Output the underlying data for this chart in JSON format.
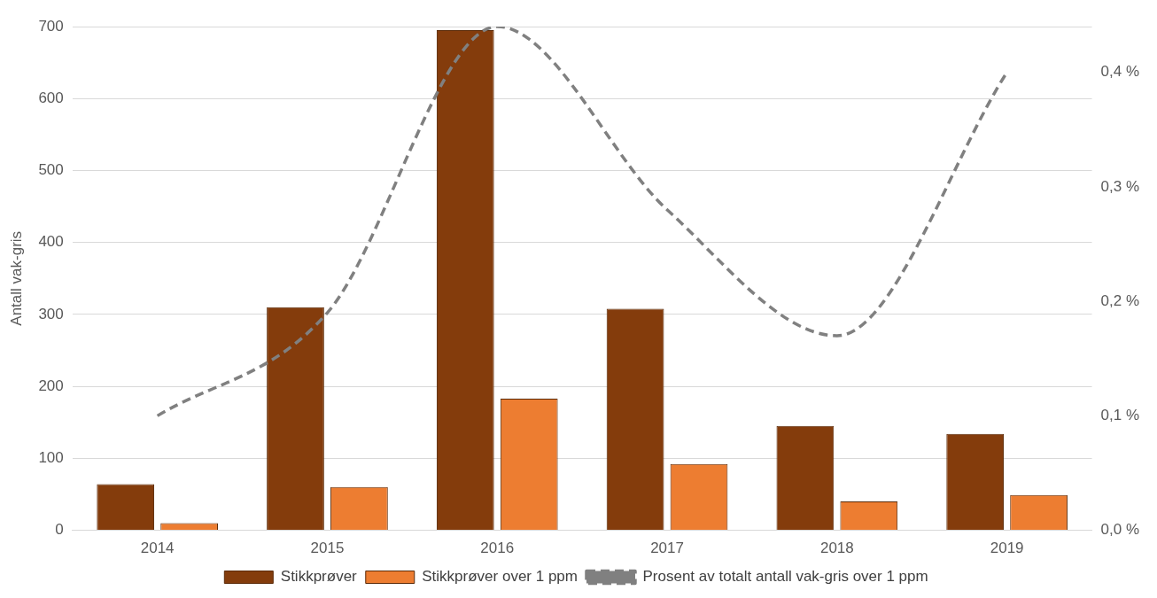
{
  "chart_data": {
    "type": "bar",
    "ylabel": "Antall vak-gris",
    "categories": [
      "2014",
      "2015",
      "2016",
      "2017",
      "2018",
      "2019"
    ],
    "series": [
      {
        "name": "Stikkprøver",
        "color": "#843c0c",
        "values": [
          64,
          310,
          695,
          308,
          145,
          134
        ]
      },
      {
        "name": "Stikkprøver over 1 ppm",
        "color": "#ed7d31",
        "values": [
          10,
          60,
          183,
          92,
          40,
          49
        ]
      },
      {
        "name": "Prosent av totalt antall vak-gris over 1 ppm",
        "type": "line",
        "axis": "y2",
        "color": "#808080",
        "line_style": "dashed",
        "marker": "none",
        "values": [
          0.1,
          0.19,
          0.44,
          0.28,
          0.17,
          0.4
        ]
      }
    ],
    "ylim": [
      0,
      700
    ],
    "yticks": [
      0,
      100,
      200,
      300,
      400,
      500,
      600,
      700
    ],
    "y2lim": [
      0,
      0.44
    ],
    "y2ticks": [
      {
        "value": 0,
        "label": "0,0 %"
      },
      {
        "value": 0.1,
        "label": "0,1 %"
      },
      {
        "value": 0.2,
        "label": "0,2 %"
      },
      {
        "value": 0.3,
        "label": "0,3 %"
      },
      {
        "value": 0.4,
        "label": "0,4 %"
      }
    ],
    "grid": "y",
    "legend": "bottom"
  }
}
